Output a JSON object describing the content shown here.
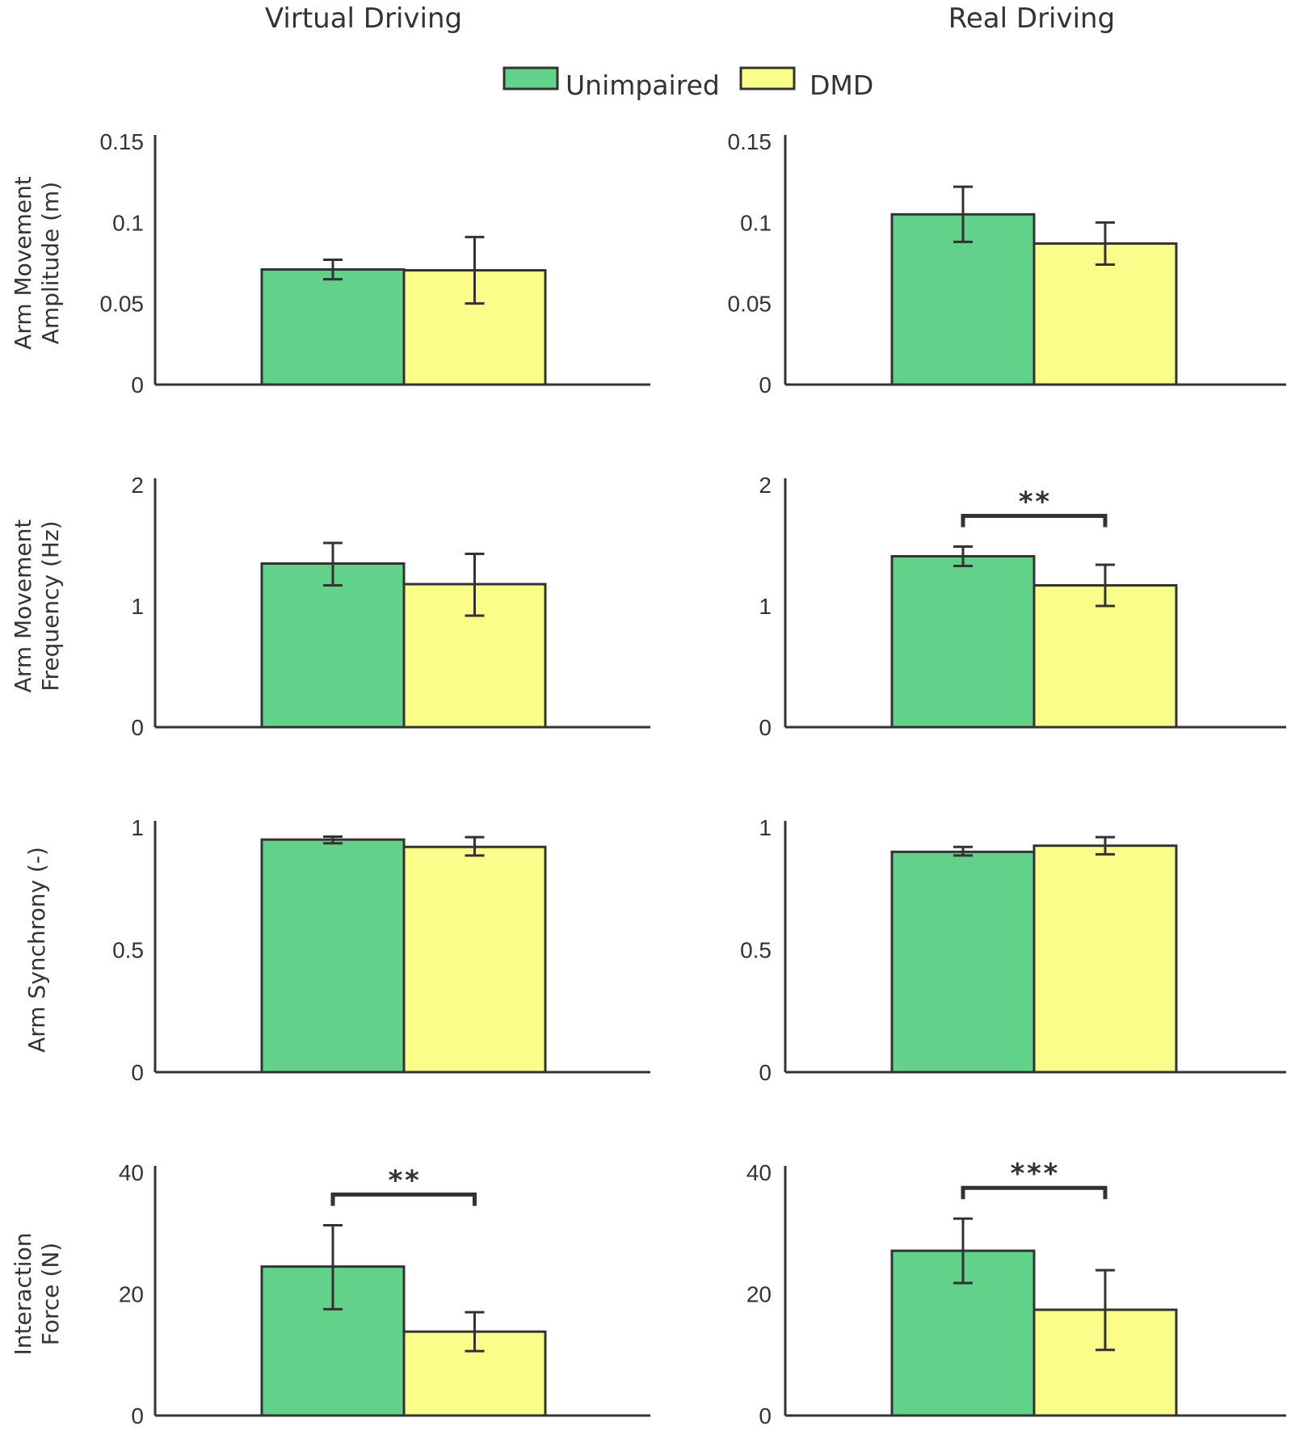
{
  "colors": {
    "unimpaired": "#62d18a",
    "dmd": "#fafd8a",
    "ink": "#333333"
  },
  "column_titles": [
    "Virtual Driving",
    "Real Driving"
  ],
  "legend": [
    {
      "label": "Unimpaired",
      "color_key": "unimpaired"
    },
    {
      "label": "DMD",
      "color_key": "dmd"
    }
  ],
  "chart_data": [
    {
      "type": "bar",
      "title": "Virtual Driving",
      "ylabel": [
        "Arm Movement",
        "Amplitude (m)"
      ],
      "ylim": [
        0,
        0.15
      ],
      "yticks": [
        "0",
        "0.05",
        "0.1",
        "0.15"
      ],
      "yticks_values": [
        0,
        0.05,
        0.1,
        0.15
      ],
      "series": [
        {
          "name": "Unimpaired",
          "value": 0.071,
          "err_low": 0.065,
          "err_high": 0.077
        },
        {
          "name": "DMD",
          "value": 0.0705,
          "err_low": 0.05,
          "err_high": 0.091
        }
      ],
      "significance": null
    },
    {
      "type": "bar",
      "title": "Real Driving",
      "ylabel": [
        "",
        ""
      ],
      "ylim": [
        0,
        0.15
      ],
      "yticks": [
        "0",
        "0.05",
        "0.1",
        "0.15"
      ],
      "yticks_values": [
        0,
        0.05,
        0.1,
        0.15
      ],
      "series": [
        {
          "name": "Unimpaired",
          "value": 0.105,
          "err_low": 0.088,
          "err_high": 0.122
        },
        {
          "name": "DMD",
          "value": 0.087,
          "err_low": 0.074,
          "err_high": 0.1
        }
      ],
      "significance": null
    },
    {
      "type": "bar",
      "title": "Virtual Driving",
      "ylabel": [
        "Arm Movement",
        "Frequency (Hz)"
      ],
      "ylim": [
        0,
        2
      ],
      "yticks": [
        "0",
        "1",
        "2"
      ],
      "yticks_values": [
        0,
        1,
        2
      ],
      "series": [
        {
          "name": "Unimpaired",
          "value": 1.35,
          "err_low": 1.17,
          "err_high": 1.52
        },
        {
          "name": "DMD",
          "value": 1.18,
          "err_low": 0.92,
          "err_high": 1.43
        }
      ],
      "significance": null
    },
    {
      "type": "bar",
      "title": "Real Driving",
      "ylabel": [
        "",
        ""
      ],
      "ylim": [
        0,
        2
      ],
      "yticks": [
        "0",
        "1",
        "2"
      ],
      "yticks_values": [
        0,
        1,
        2
      ],
      "series": [
        {
          "name": "Unimpaired",
          "value": 1.41,
          "err_low": 1.33,
          "err_high": 1.49
        },
        {
          "name": "DMD",
          "value": 1.17,
          "err_low": 1.0,
          "err_high": 1.34
        }
      ],
      "significance": "**"
    },
    {
      "type": "bar",
      "title": "Virtual Driving",
      "ylabel": [
        "Arm Synchrony (-)",
        ""
      ],
      "ylim": [
        0,
        1
      ],
      "yticks": [
        "0",
        "0.5",
        "1"
      ],
      "yticks_values": [
        0,
        0.5,
        1
      ],
      "series": [
        {
          "name": "Unimpaired",
          "value": 0.95,
          "err_low": 0.935,
          "err_high": 0.962
        },
        {
          "name": "DMD",
          "value": 0.92,
          "err_low": 0.885,
          "err_high": 0.96
        }
      ],
      "significance": null
    },
    {
      "type": "bar",
      "title": "Real Driving",
      "ylabel": [
        "",
        ""
      ],
      "ylim": [
        0,
        1
      ],
      "yticks": [
        "0",
        "0.5",
        "1"
      ],
      "yticks_values": [
        0,
        0.5,
        1
      ],
      "series": [
        {
          "name": "Unimpaired",
          "value": 0.9,
          "err_low": 0.885,
          "err_high": 0.92
        },
        {
          "name": "DMD",
          "value": 0.925,
          "err_low": 0.89,
          "err_high": 0.96
        }
      ],
      "significance": null
    },
    {
      "type": "bar",
      "title": "Virtual Driving",
      "ylabel": [
        "Interaction",
        "Force (N)"
      ],
      "ylim": [
        0,
        40
      ],
      "yticks": [
        "0",
        "20",
        "40"
      ],
      "yticks_values": [
        0,
        20,
        40
      ],
      "series": [
        {
          "name": "Unimpaired",
          "value": 24.5,
          "err_low": 17.5,
          "err_high": 31.3
        },
        {
          "name": "DMD",
          "value": 13.8,
          "err_low": 10.6,
          "err_high": 17.0
        }
      ],
      "significance": "**"
    },
    {
      "type": "bar",
      "title": "Real Driving",
      "ylabel": [
        "",
        ""
      ],
      "ylim": [
        0,
        40
      ],
      "yticks": [
        "0",
        "20",
        "40"
      ],
      "yticks_values": [
        0,
        20,
        40
      ],
      "series": [
        {
          "name": "Unimpaired",
          "value": 27.1,
          "err_low": 21.8,
          "err_high": 32.4
        },
        {
          "name": "DMD",
          "value": 17.4,
          "err_low": 10.8,
          "err_high": 23.9
        }
      ],
      "significance": "***"
    }
  ]
}
